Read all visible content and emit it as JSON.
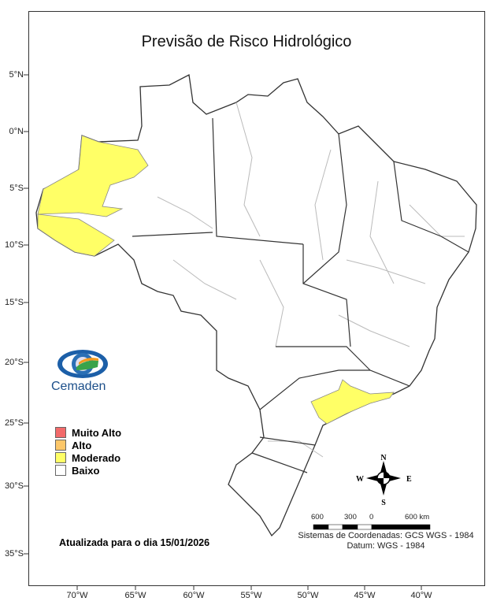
{
  "title": "Previsão de Risco Hidrológico",
  "lat_ticks": [
    "5°N",
    "0°N",
    "5°S",
    "10°S",
    "15°S",
    "20°S",
    "25°S",
    "30°S",
    "35°S"
  ],
  "lon_ticks": [
    "70°W",
    "65°W",
    "60°W",
    "55°W",
    "50°W",
    "45°W",
    "40°W"
  ],
  "logo": {
    "text": "Cemaden"
  },
  "legend": [
    {
      "label": "Muito Alto",
      "color": "#f26a6a"
    },
    {
      "label": "Alto",
      "color": "#fcc76a"
    },
    {
      "label": "Moderado",
      "color": "#ffff66"
    },
    {
      "label": "Baixo",
      "color": "#ffffff"
    }
  ],
  "updated": "Atualizada para o dia 15/01/2026",
  "compass": {
    "n": "N",
    "s": "S",
    "e": "E",
    "w": "W"
  },
  "scale_bar": {
    "labels": [
      "600",
      "300",
      "0",
      "600 km"
    ]
  },
  "crs": "Sistemas de Coordenadas: GCS WGS - 1984",
  "datum": "Datum: WGS - 1984"
}
